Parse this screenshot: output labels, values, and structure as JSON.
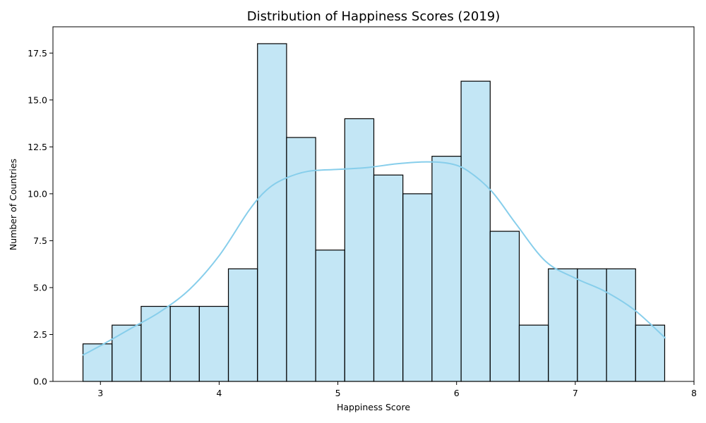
{
  "chart_data": {
    "type": "bar",
    "title": "Distribution of Happiness Scores (2019)",
    "xlabel": "Happiness Score",
    "ylabel": "Number of Countries",
    "xlim": [
      2.6,
      8.0
    ],
    "ylim": [
      0,
      18.9
    ],
    "xticks": [
      3,
      4,
      5,
      6,
      7,
      8
    ],
    "yticks": [
      0.0,
      2.5,
      5.0,
      7.5,
      10.0,
      12.5,
      15.0,
      17.5
    ],
    "ytick_labels": [
      "0.0",
      "2.5",
      "5.0",
      "7.5",
      "10.0",
      "12.5",
      "15.0",
      "17.5"
    ],
    "grid": false,
    "bins": [
      {
        "x0": 2.853,
        "x1": 3.098,
        "count": 2
      },
      {
        "x0": 3.098,
        "x1": 3.343,
        "count": 3
      },
      {
        "x0": 3.343,
        "x1": 3.588,
        "count": 4
      },
      {
        "x0": 3.588,
        "x1": 3.833,
        "count": 4
      },
      {
        "x0": 3.833,
        "x1": 4.078,
        "count": 4
      },
      {
        "x0": 4.078,
        "x1": 4.323,
        "count": 6
      },
      {
        "x0": 4.323,
        "x1": 4.568,
        "count": 18
      },
      {
        "x0": 4.568,
        "x1": 4.813,
        "count": 13
      },
      {
        "x0": 4.813,
        "x1": 5.058,
        "count": 7
      },
      {
        "x0": 5.058,
        "x1": 5.303,
        "count": 14
      },
      {
        "x0": 5.303,
        "x1": 5.548,
        "count": 11
      },
      {
        "x0": 5.548,
        "x1": 5.793,
        "count": 10
      },
      {
        "x0": 5.793,
        "x1": 6.038,
        "count": 12
      },
      {
        "x0": 6.038,
        "x1": 6.283,
        "count": 16
      },
      {
        "x0": 6.283,
        "x1": 6.528,
        "count": 8
      },
      {
        "x0": 6.528,
        "x1": 6.773,
        "count": 3
      },
      {
        "x0": 6.773,
        "x1": 7.018,
        "count": 6
      },
      {
        "x0": 7.018,
        "x1": 7.263,
        "count": 6
      },
      {
        "x0": 7.263,
        "x1": 7.508,
        "count": 6
      },
      {
        "x0": 7.508,
        "x1": 7.753,
        "count": 3
      }
    ],
    "kde": {
      "x": [
        2.85,
        3.0,
        3.25,
        3.5,
        3.75,
        4.0,
        4.25,
        4.4,
        4.55,
        4.75,
        5.0,
        5.25,
        5.5,
        5.75,
        5.95,
        6.1,
        6.3,
        6.5,
        6.75,
        7.0,
        7.25,
        7.5,
        7.76
      ],
      "y": [
        1.4,
        1.9,
        2.8,
        3.7,
        4.9,
        6.7,
        9.1,
        10.2,
        10.8,
        11.2,
        11.3,
        11.4,
        11.6,
        11.7,
        11.6,
        11.2,
        10.1,
        8.4,
        6.4,
        5.5,
        4.8,
        3.8,
        2.3
      ]
    },
    "colors": {
      "bar_fill": "#87ceeb",
      "kde_line": "#87ceeb",
      "bar_edge": "#000000"
    }
  }
}
